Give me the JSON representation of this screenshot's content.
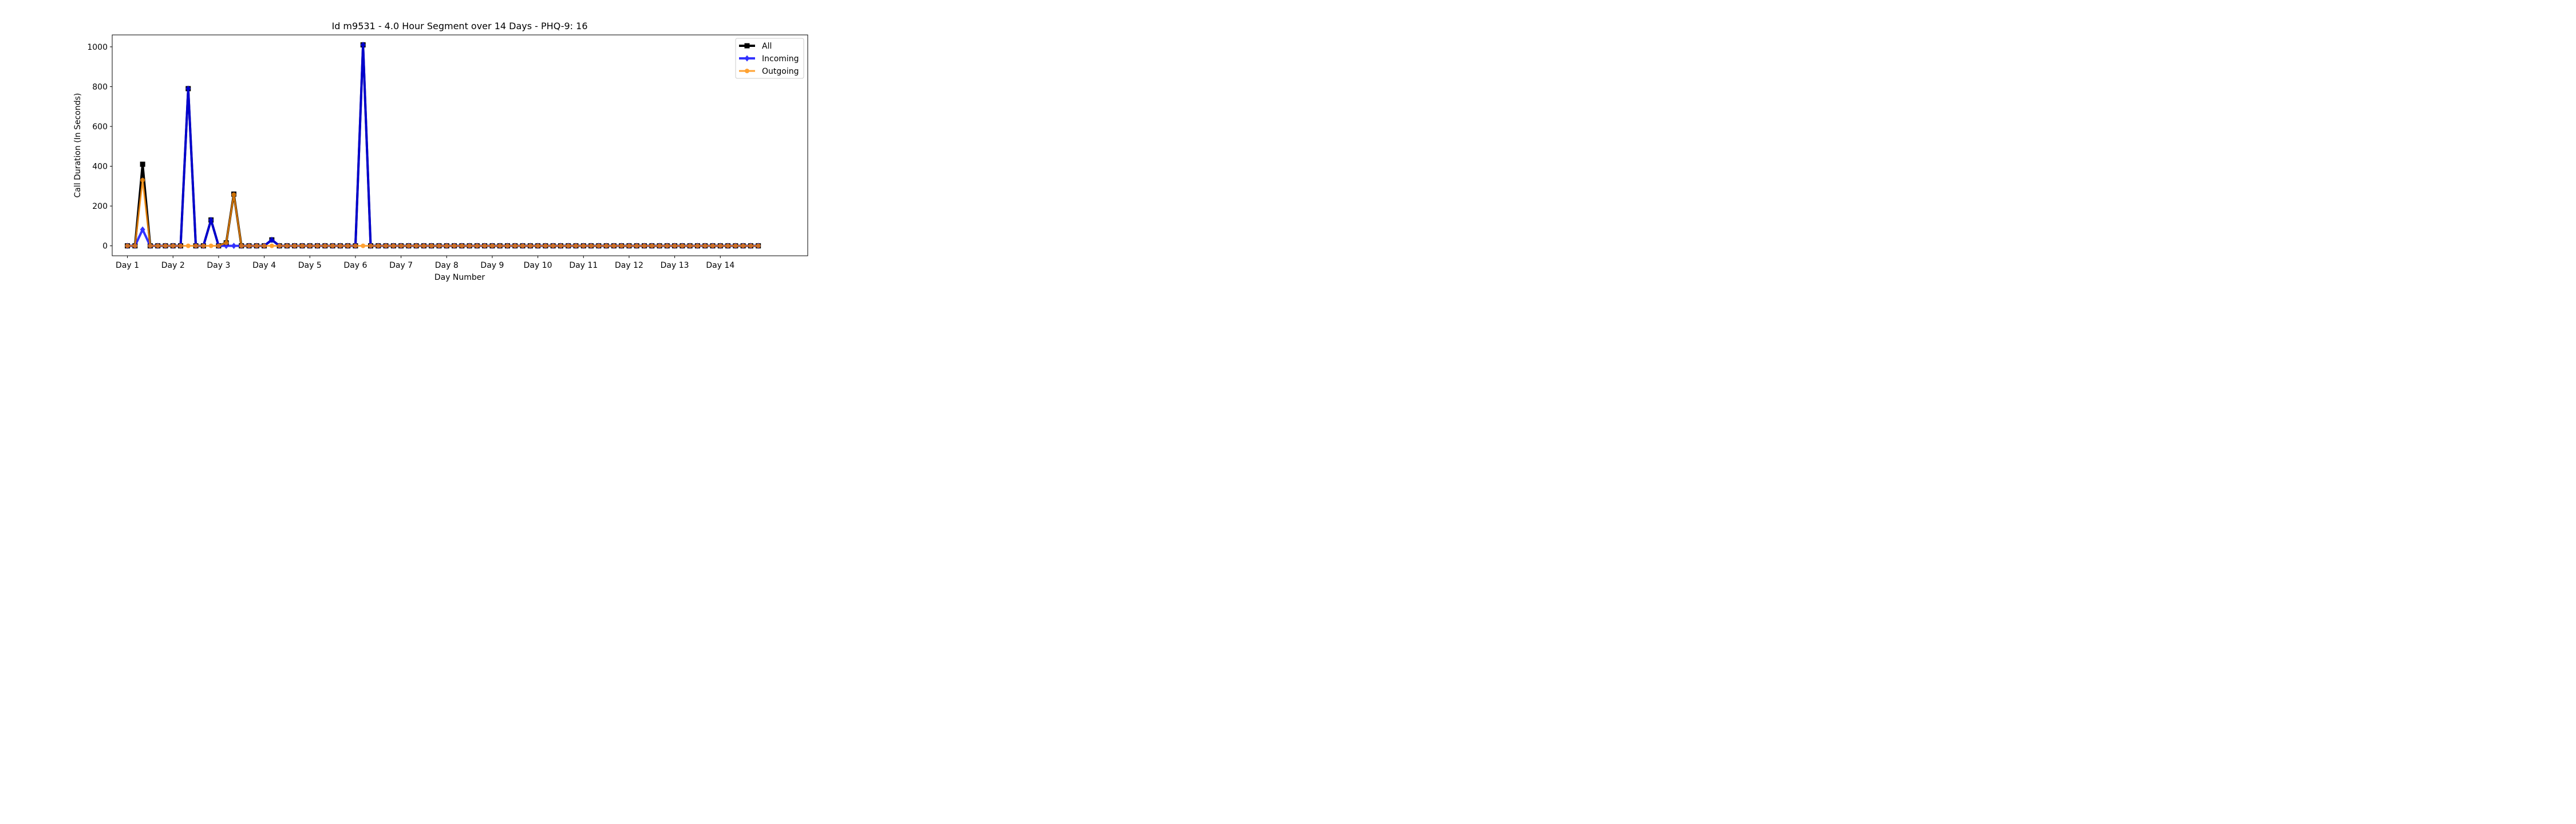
{
  "chart_data": {
    "type": "line",
    "title": "Id m9531 - 4.0 Hour Segment over 14 Days - PHQ-9: 16",
    "xlabel": "Day Number",
    "ylabel": "Call Duration (In Seconds)",
    "xtick_labels": [
      "Day 1",
      "Day 2",
      "Day 3",
      "Day 4",
      "Day 5",
      "Day 6",
      "Day 7",
      "Day 8",
      "Day 9",
      "Day 10",
      "Day 11",
      "Day 12",
      "Day 13",
      "Day 14"
    ],
    "yticks": [
      0,
      200,
      400,
      600,
      800,
      1000
    ],
    "ylim": [
      -50,
      1060
    ],
    "x_index_range": [
      -2,
      89.5
    ],
    "num_points": 84,
    "grid": false,
    "legend_position": "top-right",
    "series": [
      {
        "name": "All",
        "color": "#000000",
        "marker": "square",
        "sparse_values": {
          "2": 410,
          "8": 790,
          "11": 130,
          "13": 15,
          "14": 260,
          "19": 30,
          "31": 1010
        }
      },
      {
        "name": "Incoming",
        "color": "#0000ff",
        "marker": "diamond",
        "sparse_values": {
          "2": 82,
          "8": 790,
          "11": 130,
          "19": 30,
          "31": 1010
        }
      },
      {
        "name": "Outgoing",
        "color": "#ff8c00",
        "marker": "circle",
        "sparse_values": {
          "2": 330,
          "13": 15,
          "14": 257
        }
      }
    ]
  }
}
